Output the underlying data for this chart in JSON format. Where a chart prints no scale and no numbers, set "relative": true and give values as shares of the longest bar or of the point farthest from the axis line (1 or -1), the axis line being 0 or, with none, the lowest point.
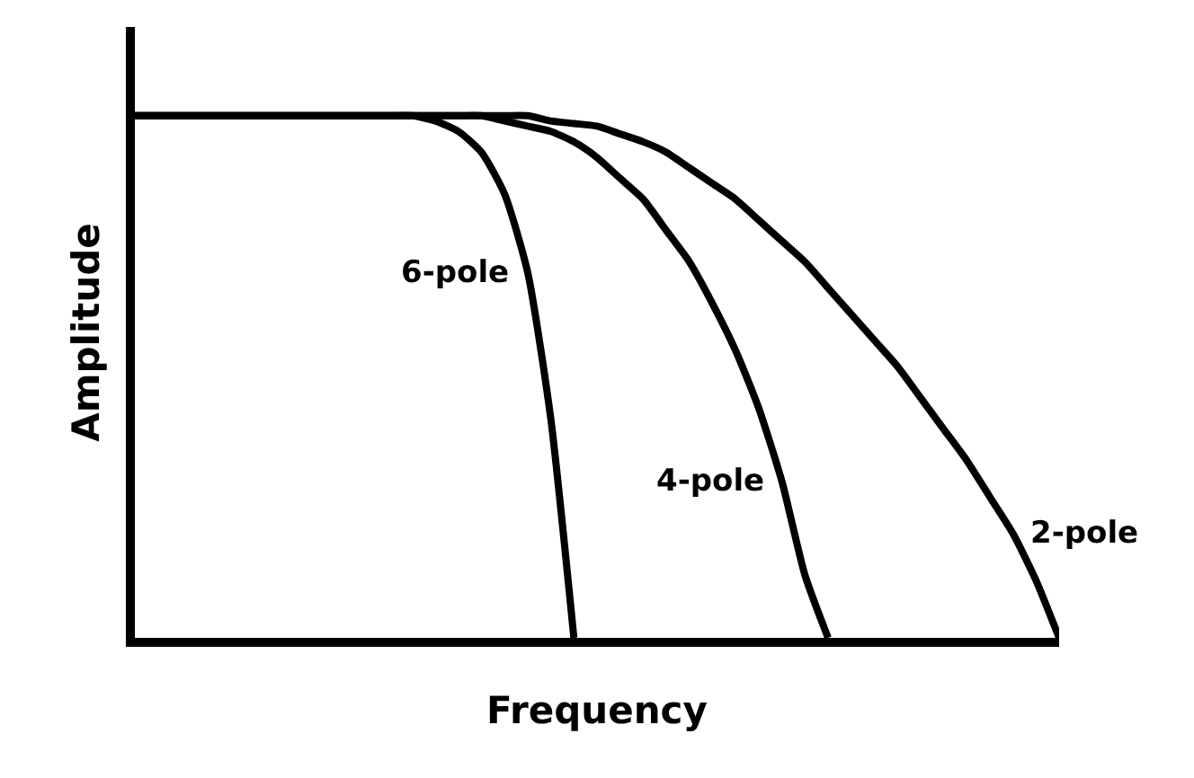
{
  "chart_data": {
    "type": "line",
    "relative": true,
    "xlabel": "Frequency",
    "ylabel": "Amplitude",
    "categories": [
      null,
      null,
      null,
      null,
      null,
      null,
      null,
      null,
      null,
      null,
      null,
      null,
      null,
      null,
      null,
      null,
      null,
      null,
      null,
      null,
      null,
      null,
      null,
      null,
      null,
      null,
      null,
      null,
      null,
      null,
      null,
      null,
      null,
      null,
      null,
      null,
      null,
      null,
      null,
      null,
      null
    ],
    "legend": false,
    "grid": false,
    "marker": "none",
    "line_style": "solid",
    "series": [
      {
        "name": "6-pole",
        "color": "#000000",
        "values": [
          1,
          1,
          1,
          1,
          1,
          1,
          1,
          1,
          1,
          1,
          1,
          1,
          1,
          0.99,
          0.97,
          0.93,
          0.85,
          0.7,
          0.42,
          0,
          null,
          null,
          null,
          null,
          null,
          null,
          null,
          null,
          null,
          null,
          null,
          null,
          null,
          null,
          null,
          null,
          null,
          null,
          null,
          null,
          null
        ]
      },
      {
        "name": "4-pole",
        "color": "#000000",
        "values": [
          1,
          1,
          1,
          1,
          1,
          1,
          1,
          1,
          1,
          1,
          1,
          1,
          1,
          1,
          1,
          1,
          0.99,
          0.98,
          0.97,
          0.95,
          0.92,
          0.88,
          0.84,
          0.78,
          0.72,
          0.64,
          0.55,
          0.44,
          0.3,
          0.12,
          0,
          null,
          null,
          null,
          null,
          null,
          null,
          null,
          null,
          null,
          null
        ]
      },
      {
        "name": "2-pole",
        "color": "#000000",
        "values": [
          1,
          1,
          1,
          1,
          1,
          1,
          1,
          1,
          1,
          1,
          1,
          1,
          1,
          1,
          1,
          1,
          1,
          1,
          0.99,
          0.985,
          0.98,
          0.965,
          0.95,
          0.93,
          0.9,
          0.87,
          0.84,
          0.8,
          0.76,
          0.72,
          0.67,
          0.62,
          0.57,
          0.52,
          0.46,
          0.4,
          0.34,
          0.27,
          0.2,
          0.11,
          0
        ]
      }
    ]
  }
}
